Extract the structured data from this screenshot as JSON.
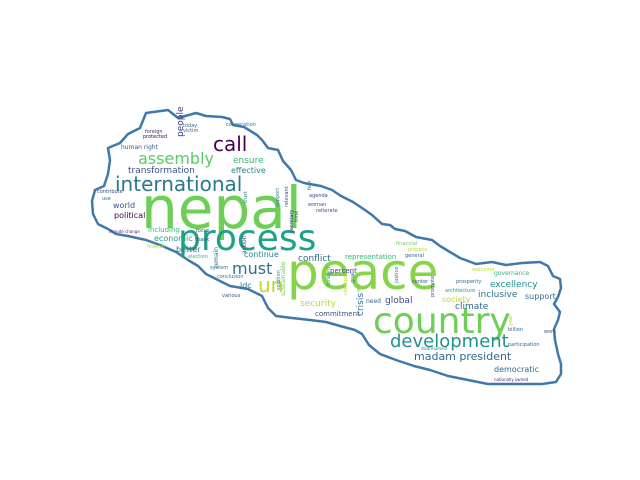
{
  "shape": {
    "outline_color": "#3f78ab",
    "fill_color": "#ffffff"
  },
  "words": [
    {
      "text": "nepal",
      "color": "#6ece58"
    },
    {
      "text": "peace",
      "color": "#86d549"
    },
    {
      "text": "process",
      "color": "#1fa187"
    },
    {
      "text": "country",
      "color": "#6ece58"
    },
    {
      "text": "international",
      "color": "#2a788e"
    },
    {
      "text": "development",
      "color": "#21918c"
    },
    {
      "text": "assembly",
      "color": "#5ec962"
    },
    {
      "text": "call",
      "color": "#440154"
    },
    {
      "text": "un",
      "color": "#b5de2b"
    },
    {
      "text": "must",
      "color": "#2c728e"
    },
    {
      "text": "madam president",
      "color": "#31688e"
    },
    {
      "text": "transformation",
      "color": "#3b528b"
    },
    {
      "text": "ensure",
      "color": "#35b779"
    },
    {
      "text": "effective",
      "color": "#26828e"
    },
    {
      "text": "world",
      "color": "#3b528b"
    },
    {
      "text": "political",
      "color": "#440154"
    },
    {
      "text": "including",
      "color": "#35b779"
    },
    {
      "text": "economic",
      "color": "#1f9e89"
    },
    {
      "text": "better",
      "color": "#2c728e"
    },
    {
      "text": "continue",
      "color": "#26828e"
    },
    {
      "text": "conflict",
      "color": "#31688e"
    },
    {
      "text": "security",
      "color": "#b5de2b"
    },
    {
      "text": "global",
      "color": "#3e4989"
    },
    {
      "text": "crisis",
      "color": "#2c728e"
    },
    {
      "text": "commitment",
      "color": "#3b528b"
    },
    {
      "text": "excellency",
      "color": "#21918c"
    },
    {
      "text": "inclusive",
      "color": "#2c728e"
    },
    {
      "text": "climate",
      "color": "#31688e"
    },
    {
      "text": "society",
      "color": "#b5de2b"
    },
    {
      "text": "support",
      "color": "#31688e"
    },
    {
      "text": "democratic",
      "color": "#31688e"
    },
    {
      "text": "representation",
      "color": "#35b779"
    },
    {
      "text": "people",
      "color": "#443983"
    },
    {
      "text": "ldc",
      "color": "#2a788e"
    },
    {
      "text": "governance",
      "color": "#35b779"
    },
    {
      "text": "percent",
      "color": "#3e4989"
    },
    {
      "text": "need",
      "color": "#31688e"
    },
    {
      "text": "human right",
      "color": "#3b528b"
    },
    {
      "text": "foreign",
      "color": "#482878"
    },
    {
      "text": "victim",
      "color": "#31688e"
    },
    {
      "text": "protected",
      "color": "#440154"
    },
    {
      "text": "contribute",
      "color": "#3e4989"
    },
    {
      "text": "cooperation",
      "color": "#2a788e"
    },
    {
      "text": "action",
      "color": "#3e4989"
    },
    {
      "text": "today",
      "color": "#31688e"
    },
    {
      "text": "reiterate",
      "color": "#3b528b"
    },
    {
      "text": "agenda",
      "color": "#3e4989"
    },
    {
      "text": "woman",
      "color": "#3b528b"
    },
    {
      "text": "relevant",
      "color": "#3e4989"
    },
    {
      "text": "fear",
      "color": "#2c728e"
    },
    {
      "text": "support",
      "color": "#26828e"
    },
    {
      "text": "time",
      "color": "#3e4989"
    },
    {
      "text": "use",
      "color": "#2c728e"
    },
    {
      "text": "focus",
      "color": "#3e4989"
    },
    {
      "text": "thank",
      "color": "#3e4989"
    },
    {
      "text": "remain",
      "color": "#2a788e"
    },
    {
      "text": "system",
      "color": "#2c728e"
    },
    {
      "text": "conclusion",
      "color": "#2a788e"
    },
    {
      "text": "various",
      "color": "#3b528b"
    },
    {
      "text": "election",
      "color": "#35b779"
    },
    {
      "text": "federal",
      "color": "#b5de2b"
    },
    {
      "text": "sustainable",
      "color": "#6ece58"
    },
    {
      "text": "financial",
      "color": "#6ece58"
    },
    {
      "text": "justice",
      "color": "#2c728e"
    },
    {
      "text": "goal",
      "color": "#2a788e"
    },
    {
      "text": "center",
      "color": "#3b528b"
    },
    {
      "text": "general",
      "color": "#31688e"
    },
    {
      "text": "prosperity",
      "color": "#31688e"
    },
    {
      "text": "architecture",
      "color": "#1f9e89"
    },
    {
      "text": "disarmament",
      "color": "#2a788e"
    },
    {
      "text": "participation",
      "color": "#2c728e"
    },
    {
      "text": "billion",
      "color": "#2c728e"
    },
    {
      "text": "nationally owned",
      "color": "#482878"
    },
    {
      "text": "climate change",
      "color": "#482878"
    },
    {
      "text": "work",
      "color": "#3b528b"
    },
    {
      "text": "year",
      "color": "#b5de2b"
    },
    {
      "text": "forward",
      "color": "#1f9e89"
    },
    {
      "text": "welcome",
      "color": "#b5de2b"
    },
    {
      "text": "promote",
      "color": "#3e4989"
    },
    {
      "text": "conduct",
      "color": "#b5de2b"
    },
    {
      "text": "will",
      "color": "#6ece58"
    },
    {
      "text": "solution",
      "color": "#21918c"
    },
    {
      "text": "secretary",
      "color": "#443983"
    },
    {
      "text": "trust",
      "color": "#2a788e"
    },
    {
      "text": "process",
      "color": "#b5de2b"
    }
  ]
}
